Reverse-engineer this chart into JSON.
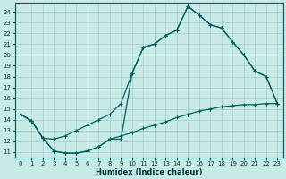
{
  "xlabel": "Humidex (Indice chaleur)",
  "bg_color": "#c8eae6",
  "grid_color": "#a0cccc",
  "line_color": "#006060",
  "xlim": [
    -0.5,
    23.5
  ],
  "ylim": [
    10.5,
    24.8
  ],
  "yticks": [
    11,
    12,
    13,
    14,
    15,
    16,
    17,
    18,
    19,
    20,
    21,
    22,
    23,
    24
  ],
  "xticks": [
    0,
    1,
    2,
    3,
    4,
    5,
    6,
    7,
    8,
    9,
    10,
    11,
    12,
    13,
    14,
    15,
    16,
    17,
    18,
    19,
    20,
    21,
    22,
    23
  ],
  "upper_x": [
    0,
    1,
    2,
    3,
    4,
    5,
    6,
    7,
    8,
    9,
    10,
    11,
    12,
    13,
    14,
    15,
    16,
    17,
    18,
    19,
    20,
    21,
    22,
    23
  ],
  "upper_y": [
    14.5,
    13.9,
    12.3,
    12.2,
    12.5,
    13.0,
    13.5,
    14.0,
    14.5,
    15.5,
    18.3,
    20.7,
    21.0,
    21.8,
    22.3,
    24.5,
    23.7,
    22.8,
    22.5,
    21.2,
    20.0,
    18.5,
    18.0,
    15.5
  ],
  "main_x": [
    0,
    1,
    2,
    3,
    4,
    5,
    6,
    7,
    8,
    9,
    10,
    11,
    12,
    13,
    14,
    15,
    16,
    17,
    18,
    19,
    20,
    21,
    22,
    23
  ],
  "main_y": [
    14.5,
    13.9,
    12.3,
    11.1,
    10.9,
    10.9,
    11.1,
    11.5,
    12.2,
    12.2,
    18.3,
    20.7,
    21.0,
    21.8,
    22.3,
    24.5,
    23.7,
    22.8,
    22.5,
    21.2,
    20.0,
    18.5,
    18.0,
    15.5
  ],
  "lower_x": [
    0,
    1,
    2,
    3,
    4,
    5,
    6,
    7,
    8,
    9,
    10,
    11,
    12,
    13,
    14,
    15,
    16,
    17,
    18,
    19,
    20,
    21,
    22,
    23
  ],
  "lower_y": [
    14.5,
    13.9,
    12.3,
    11.1,
    10.9,
    10.9,
    11.1,
    11.5,
    12.2,
    12.5,
    12.8,
    13.2,
    13.5,
    13.8,
    14.2,
    14.5,
    14.8,
    15.0,
    15.2,
    15.3,
    15.4,
    15.4,
    15.5,
    15.5
  ]
}
